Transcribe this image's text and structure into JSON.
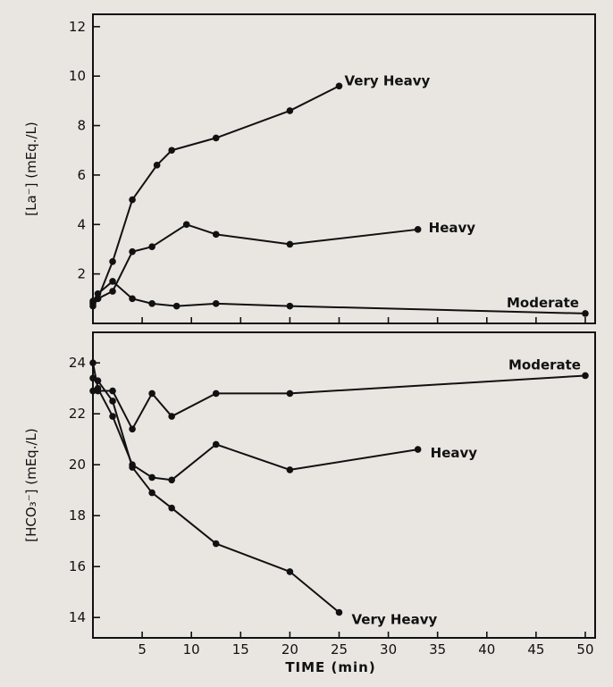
{
  "chart_data": [
    {
      "type": "line",
      "ylabel": {
        "bracket": "[La⁻]",
        "units": "(mEq./L)"
      },
      "xlim": [
        0,
        51
      ],
      "ylim": [
        0,
        12.5
      ],
      "yticks": [
        2,
        4,
        6,
        8,
        10,
        12
      ],
      "series": [
        {
          "name": "Very Heavy",
          "x": [
            0,
            0.5,
            2,
            4,
            6.5,
            8,
            12.5,
            20,
            25
          ],
          "y": [
            0.8,
            1.0,
            2.5,
            5.0,
            6.4,
            7.0,
            7.5,
            8.6,
            9.6
          ]
        },
        {
          "name": "Heavy",
          "x": [
            0,
            0.5,
            2,
            4,
            6,
            9.5,
            12.5,
            20,
            33
          ],
          "y": [
            0.7,
            1.0,
            1.3,
            2.9,
            3.1,
            4.0,
            3.6,
            3.2,
            3.8
          ]
        },
        {
          "name": "Moderate",
          "x": [
            0,
            0.5,
            2,
            4,
            6,
            8.5,
            12.5,
            20,
            50
          ],
          "y": [
            0.9,
            1.2,
            1.7,
            1.0,
            0.8,
            0.7,
            0.8,
            0.7,
            0.4
          ]
        }
      ]
    },
    {
      "type": "line",
      "ylabel": {
        "bracket": "[HCO₃⁻]",
        "units": "(mEq./L)"
      },
      "xlabel": "TIME (min)",
      "xlim": [
        0,
        51
      ],
      "ylim": [
        13.2,
        25.2
      ],
      "yticks": [
        14,
        16,
        18,
        20,
        22,
        24
      ],
      "xticks": [
        5,
        10,
        15,
        20,
        25,
        30,
        35,
        40,
        45,
        50
      ],
      "series": [
        {
          "name": "Moderate",
          "x": [
            0,
            0.5,
            2,
            4,
            6,
            8,
            12.5,
            20,
            50
          ],
          "y": [
            22.9,
            22.9,
            22.9,
            21.4,
            22.8,
            21.9,
            22.8,
            22.8,
            23.5
          ]
        },
        {
          "name": "Heavy",
          "x": [
            0,
            0.5,
            2,
            4,
            6,
            8,
            12.5,
            20,
            33
          ],
          "y": [
            24.0,
            23.0,
            21.9,
            20.0,
            19.5,
            19.4,
            20.8,
            19.8,
            20.6
          ]
        },
        {
          "name": "Very Heavy",
          "x": [
            0,
            0.5,
            2,
            4,
            6,
            8,
            12.5,
            20,
            25
          ],
          "y": [
            23.4,
            23.3,
            22.5,
            19.9,
            18.9,
            18.3,
            16.9,
            15.8,
            14.2
          ]
        }
      ]
    }
  ]
}
